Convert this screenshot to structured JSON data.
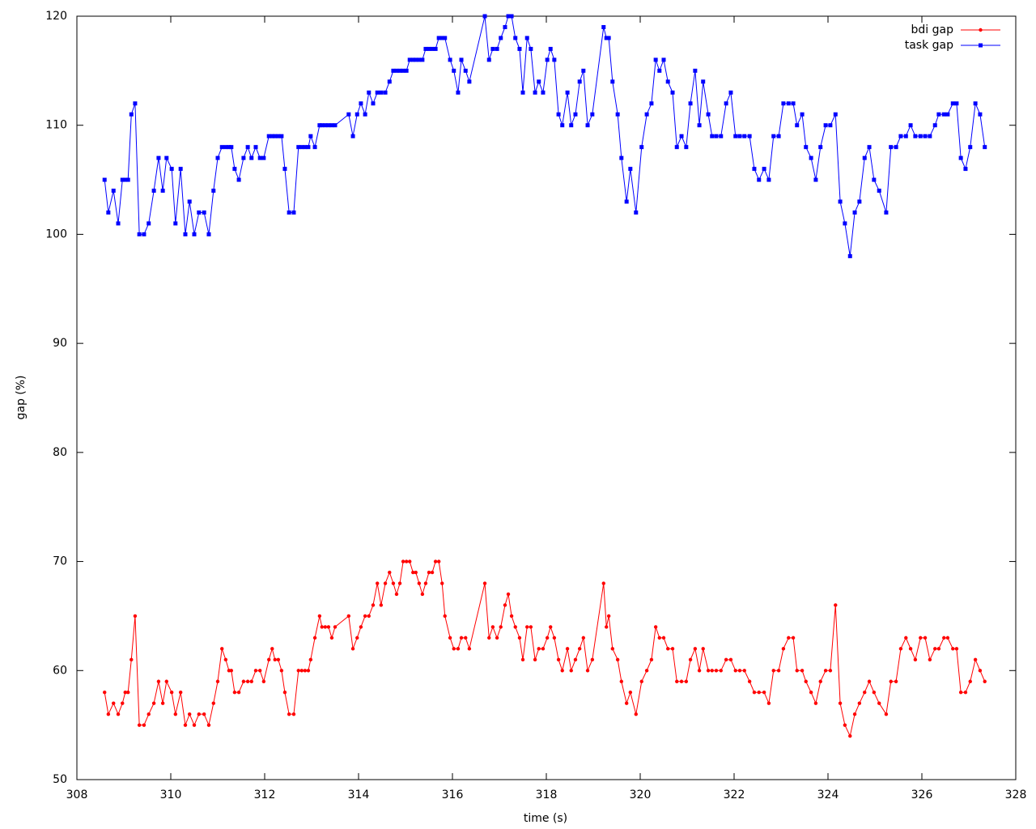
{
  "chart_data": {
    "type": "line",
    "xlabel": "time (s)",
    "ylabel": "gap (%)",
    "xlim": [
      308,
      328
    ],
    "xticks": [
      308,
      310,
      312,
      314,
      316,
      318,
      320,
      322,
      324,
      326,
      328
    ],
    "ylim": [
      50,
      120
    ],
    "yticks": [
      50,
      60,
      70,
      80,
      90,
      100,
      110,
      120
    ],
    "legend": "upper right",
    "x": [
      308.59,
      308.67,
      308.78,
      308.88,
      308.97,
      309.03,
      309.09,
      309.16,
      309.24,
      309.33,
      309.43,
      309.53,
      309.64,
      309.74,
      309.83,
      309.91,
      310.02,
      310.1,
      310.21,
      310.31,
      310.4,
      310.5,
      310.6,
      310.71,
      310.81,
      310.91,
      311.0,
      311.09,
      311.17,
      311.24,
      311.29,
      311.36,
      311.45,
      311.55,
      311.64,
      311.72,
      311.81,
      311.9,
      311.98,
      312.09,
      312.16,
      312.22,
      312.29,
      312.36,
      312.43,
      312.52,
      312.62,
      312.72,
      312.79,
      312.86,
      312.93,
      312.98,
      313.07,
      313.17,
      313.22,
      313.29,
      313.36,
      313.43,
      313.5,
      313.79,
      313.88,
      313.97,
      314.05,
      314.14,
      314.22,
      314.31,
      314.4,
      314.48,
      314.57,
      314.66,
      314.74,
      314.81,
      314.88,
      314.95,
      315.02,
      315.09,
      315.16,
      315.22,
      315.29,
      315.36,
      315.43,
      315.5,
      315.57,
      315.64,
      315.71,
      315.78,
      315.84,
      315.95,
      316.03,
      316.12,
      316.19,
      316.28,
      316.36,
      316.69,
      316.78,
      316.86,
      316.95,
      317.03,
      317.12,
      317.19,
      317.26,
      317.34,
      317.43,
      317.5,
      317.59,
      317.67,
      317.76,
      317.84,
      317.93,
      318.02,
      318.09,
      318.17,
      318.26,
      318.34,
      318.45,
      318.53,
      318.62,
      318.71,
      318.79,
      318.88,
      318.98,
      319.22,
      319.28,
      319.33,
      319.41,
      319.52,
      319.6,
      319.71,
      319.79,
      319.91,
      320.03,
      320.14,
      320.24,
      320.33,
      320.41,
      320.5,
      320.59,
      320.69,
      320.78,
      320.88,
      320.98,
      321.07,
      321.17,
      321.26,
      321.34,
      321.45,
      321.53,
      321.62,
      321.72,
      321.83,
      321.93,
      322.03,
      322.12,
      322.22,
      322.33,
      322.43,
      322.53,
      322.64,
      322.74,
      322.84,
      322.95,
      323.05,
      323.16,
      323.26,
      323.34,
      323.45,
      323.53,
      323.64,
      323.74,
      323.84,
      323.95,
      324.05,
      324.16,
      324.26,
      324.36,
      324.47,
      324.57,
      324.67,
      324.78,
      324.88,
      324.98,
      325.09,
      325.24,
      325.34,
      325.45,
      325.55,
      325.66,
      325.76,
      325.86,
      325.97,
      326.07,
      326.17,
      326.28,
      326.36,
      326.47,
      326.55,
      326.66,
      326.74,
      326.83,
      326.93,
      327.03,
      327.14,
      327.24,
      327.34
    ],
    "series": [
      {
        "name": "bdi gap",
        "color": "#ff0000",
        "marker": "circle",
        "values": [
          58,
          56,
          57,
          56,
          57,
          58,
          58,
          61,
          65,
          55,
          55,
          56,
          57,
          59,
          57,
          59,
          58,
          56,
          58,
          55,
          56,
          55,
          56,
          56,
          55,
          57,
          59,
          62,
          61,
          60,
          60,
          58,
          58,
          59,
          59,
          59,
          60,
          60,
          59,
          61,
          62,
          61,
          61,
          60,
          58,
          56,
          56,
          60,
          60,
          60,
          60,
          61,
          63,
          65,
          64,
          64,
          64,
          63,
          64,
          65,
          62,
          63,
          64,
          65,
          65,
          66,
          68,
          66,
          68,
          69,
          68,
          67,
          68,
          70,
          70,
          70,
          69,
          69,
          68,
          67,
          68,
          69,
          69,
          70,
          70,
          68,
          65,
          63,
          62,
          62,
          63,
          63,
          62,
          68,
          63,
          64,
          63,
          64,
          66,
          67,
          65,
          64,
          63,
          61,
          64,
          64,
          61,
          62,
          62,
          63,
          64,
          63,
          61,
          60,
          62,
          60,
          61,
          62,
          63,
          60,
          61,
          68,
          64,
          65,
          62,
          61,
          59,
          57,
          58,
          56,
          59,
          60,
          61,
          64,
          63,
          63,
          62,
          62,
          59,
          59,
          59,
          61,
          62,
          60,
          62,
          60,
          60,
          60,
          60,
          61,
          61,
          60,
          60,
          60,
          59,
          58,
          58,
          58,
          57,
          60,
          60,
          62,
          63,
          63,
          60,
          60,
          59,
          58,
          57,
          59,
          60,
          60,
          66,
          57,
          55,
          54,
          56,
          57,
          58,
          59,
          58,
          57,
          56,
          59,
          59,
          62,
          63,
          62,
          61,
          63,
          63,
          61,
          62,
          62,
          63,
          63,
          62,
          62,
          58,
          58,
          59,
          61,
          60,
          59
        ]
      },
      {
        "name": "task gap",
        "color": "#0000ff",
        "marker": "square",
        "values": [
          105,
          102,
          104,
          101,
          105,
          105,
          105,
          111,
          112,
          100,
          100,
          101,
          104,
          107,
          104,
          107,
          106,
          101,
          106,
          100,
          103,
          100,
          102,
          102,
          100,
          104,
          107,
          108,
          108,
          108,
          108,
          106,
          105,
          107,
          108,
          107,
          108,
          107,
          107,
          109,
          109,
          109,
          109,
          109,
          106,
          102,
          102,
          108,
          108,
          108,
          108,
          109,
          108,
          110,
          110,
          110,
          110,
          110,
          110,
          111,
          109,
          111,
          112,
          111,
          113,
          112,
          113,
          113,
          113,
          114,
          115,
          115,
          115,
          115,
          115,
          116,
          116,
          116,
          116,
          116,
          117,
          117,
          117,
          117,
          118,
          118,
          118,
          116,
          115,
          113,
          116,
          115,
          114,
          120,
          116,
          117,
          117,
          118,
          119,
          120,
          120,
          118,
          117,
          113,
          118,
          117,
          113,
          114,
          113,
          116,
          117,
          116,
          111,
          110,
          113,
          110,
          111,
          114,
          115,
          110,
          111,
          119,
          118,
          118,
          114,
          111,
          107,
          103,
          106,
          102,
          108,
          111,
          112,
          116,
          115,
          116,
          114,
          113,
          108,
          109,
          108,
          112,
          115,
          110,
          114,
          111,
          109,
          109,
          109,
          112,
          113,
          109,
          109,
          109,
          109,
          106,
          105,
          106,
          105,
          109,
          109,
          112,
          112,
          112,
          110,
          111,
          108,
          107,
          105,
          108,
          110,
          110,
          111,
          103,
          101,
          98,
          102,
          103,
          107,
          108,
          105,
          104,
          102,
          108,
          108,
          109,
          109,
          110,
          109,
          109,
          109,
          109,
          110,
          111,
          111,
          111,
          112,
          112,
          107,
          106,
          108,
          112,
          111,
          108
        ]
      }
    ]
  }
}
